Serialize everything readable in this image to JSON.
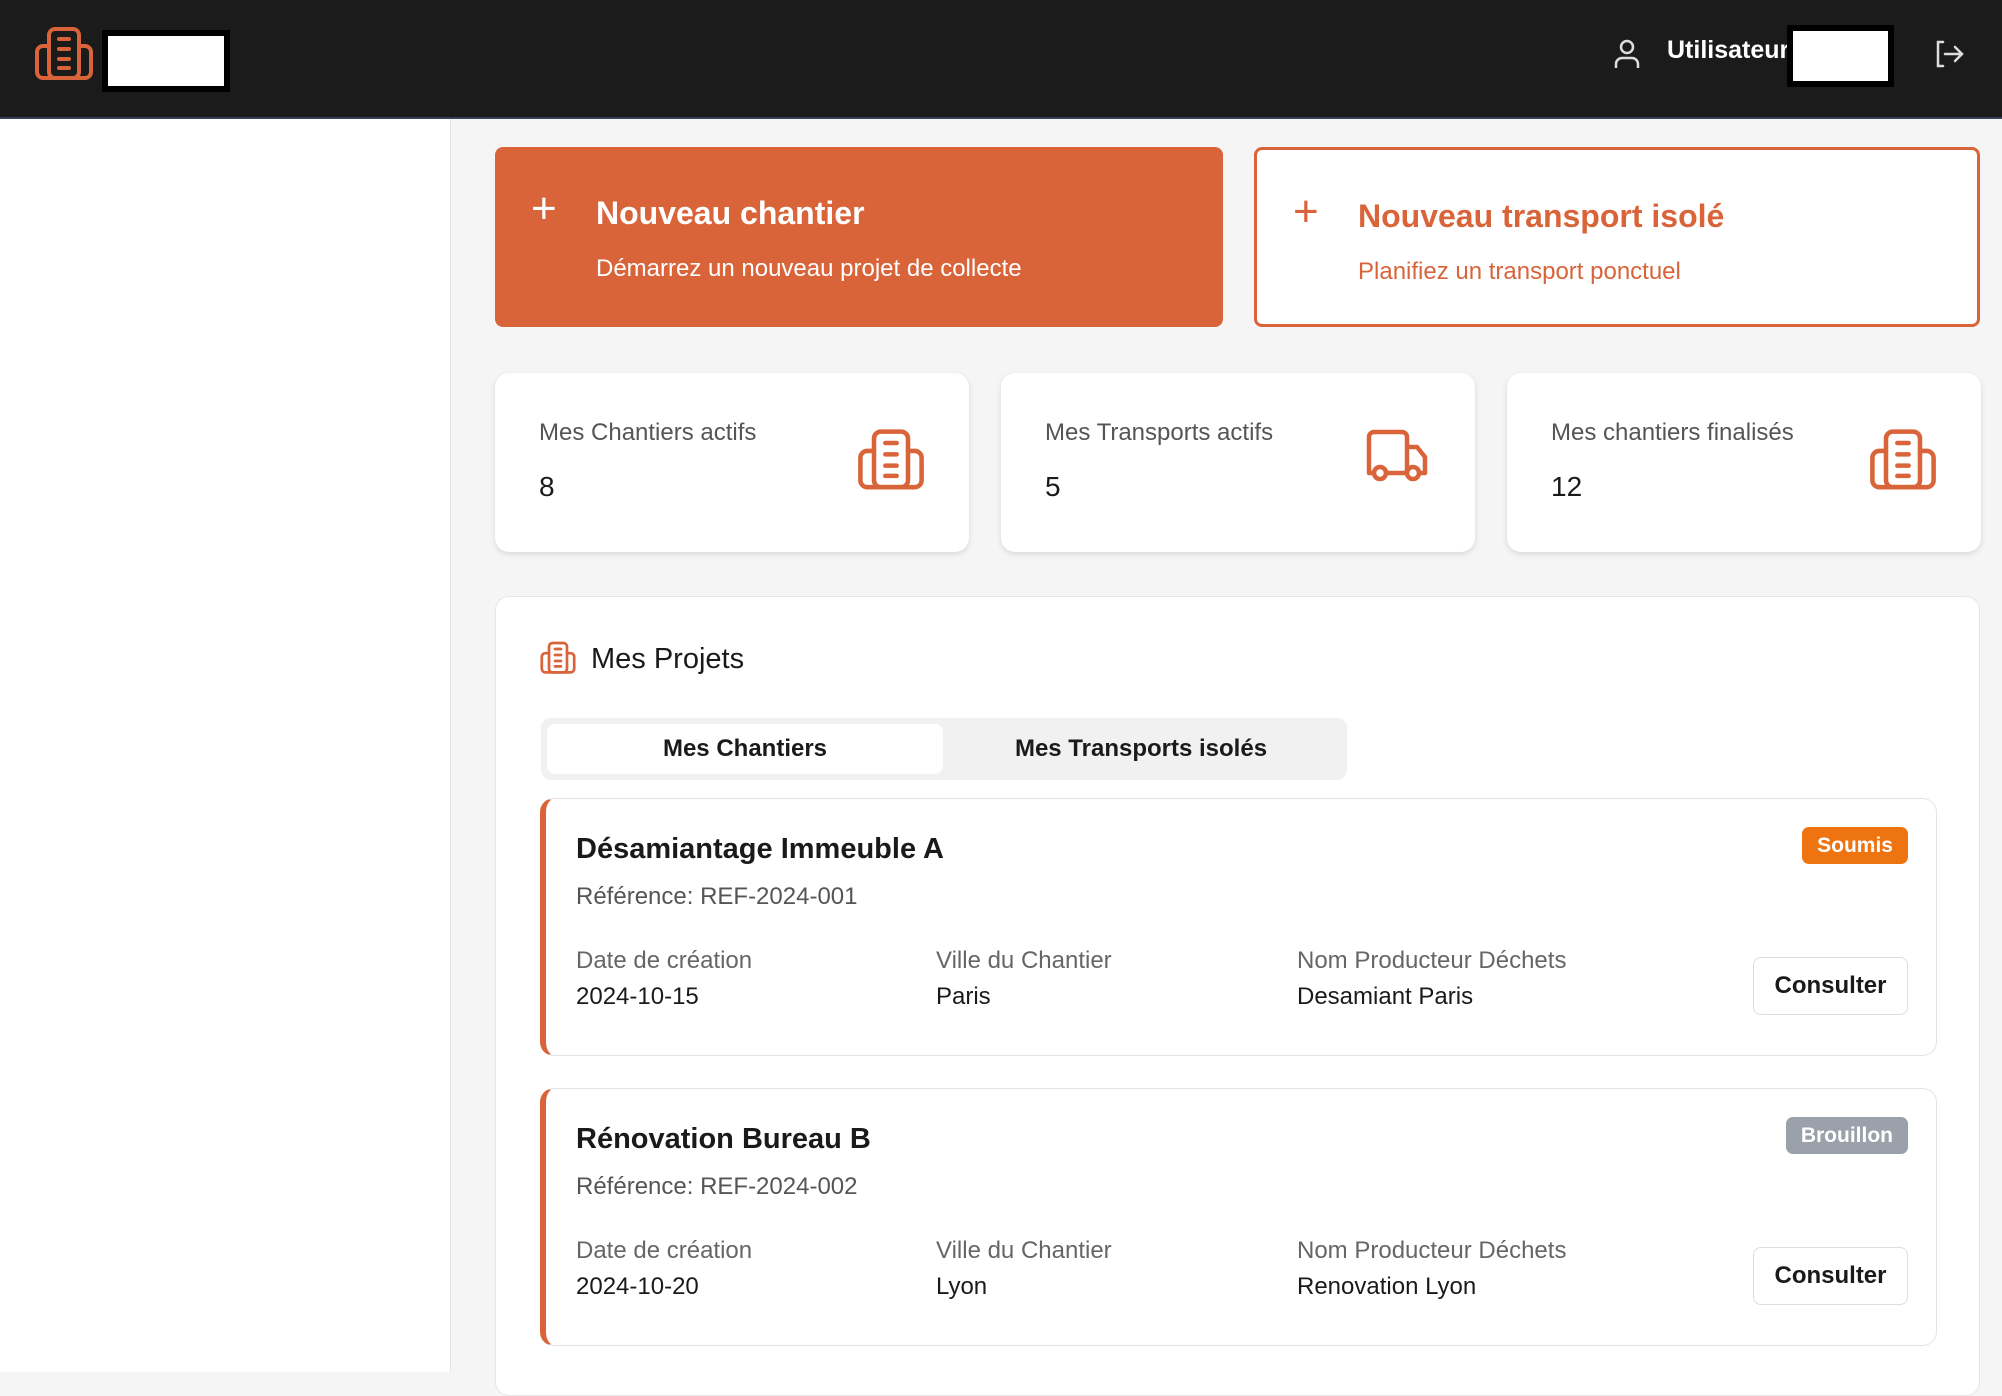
{
  "header": {
    "user_label": "Utilisateur",
    "accent": "#d9643a"
  },
  "actions": [
    {
      "title": "Nouveau chantier",
      "subtitle": "Démarrez un nouveau projet de collecte",
      "icon": "plus-icon"
    },
    {
      "title": "Nouveau transport isolé",
      "subtitle": "Planifiez un transport ponctuel",
      "icon": "plus-icon"
    }
  ],
  "stats": [
    {
      "label": "Mes Chantiers actifs",
      "value": "8",
      "icon": "building-icon"
    },
    {
      "label": "Mes Transports actifs",
      "value": "5",
      "icon": "truck-icon"
    },
    {
      "label": "Mes chantiers finalisés",
      "value": "12",
      "icon": "building-icon"
    }
  ],
  "projects": {
    "title": "Mes Projets",
    "tabs": [
      "Mes Chantiers",
      "Mes Transports isolés"
    ],
    "field_labels": [
      "Date de création",
      "Ville du Chantier",
      "Nom Producteur Déchets"
    ],
    "button_label": "Consulter",
    "items": [
      {
        "name": "Désamiantage Immeuble A",
        "reference": "Référence: REF-2024-001",
        "status": "Soumis",
        "status_color": "#ee7311",
        "date": "2024-10-15",
        "city": "Paris",
        "producer": "Desamiant Paris"
      },
      {
        "name": "Rénovation Bureau B",
        "reference": "Référence: REF-2024-002",
        "status": "Brouillon",
        "status_color": "#9ba1ab",
        "date": "2024-10-20",
        "city": "Lyon",
        "producer": "Renovation Lyon"
      }
    ]
  }
}
